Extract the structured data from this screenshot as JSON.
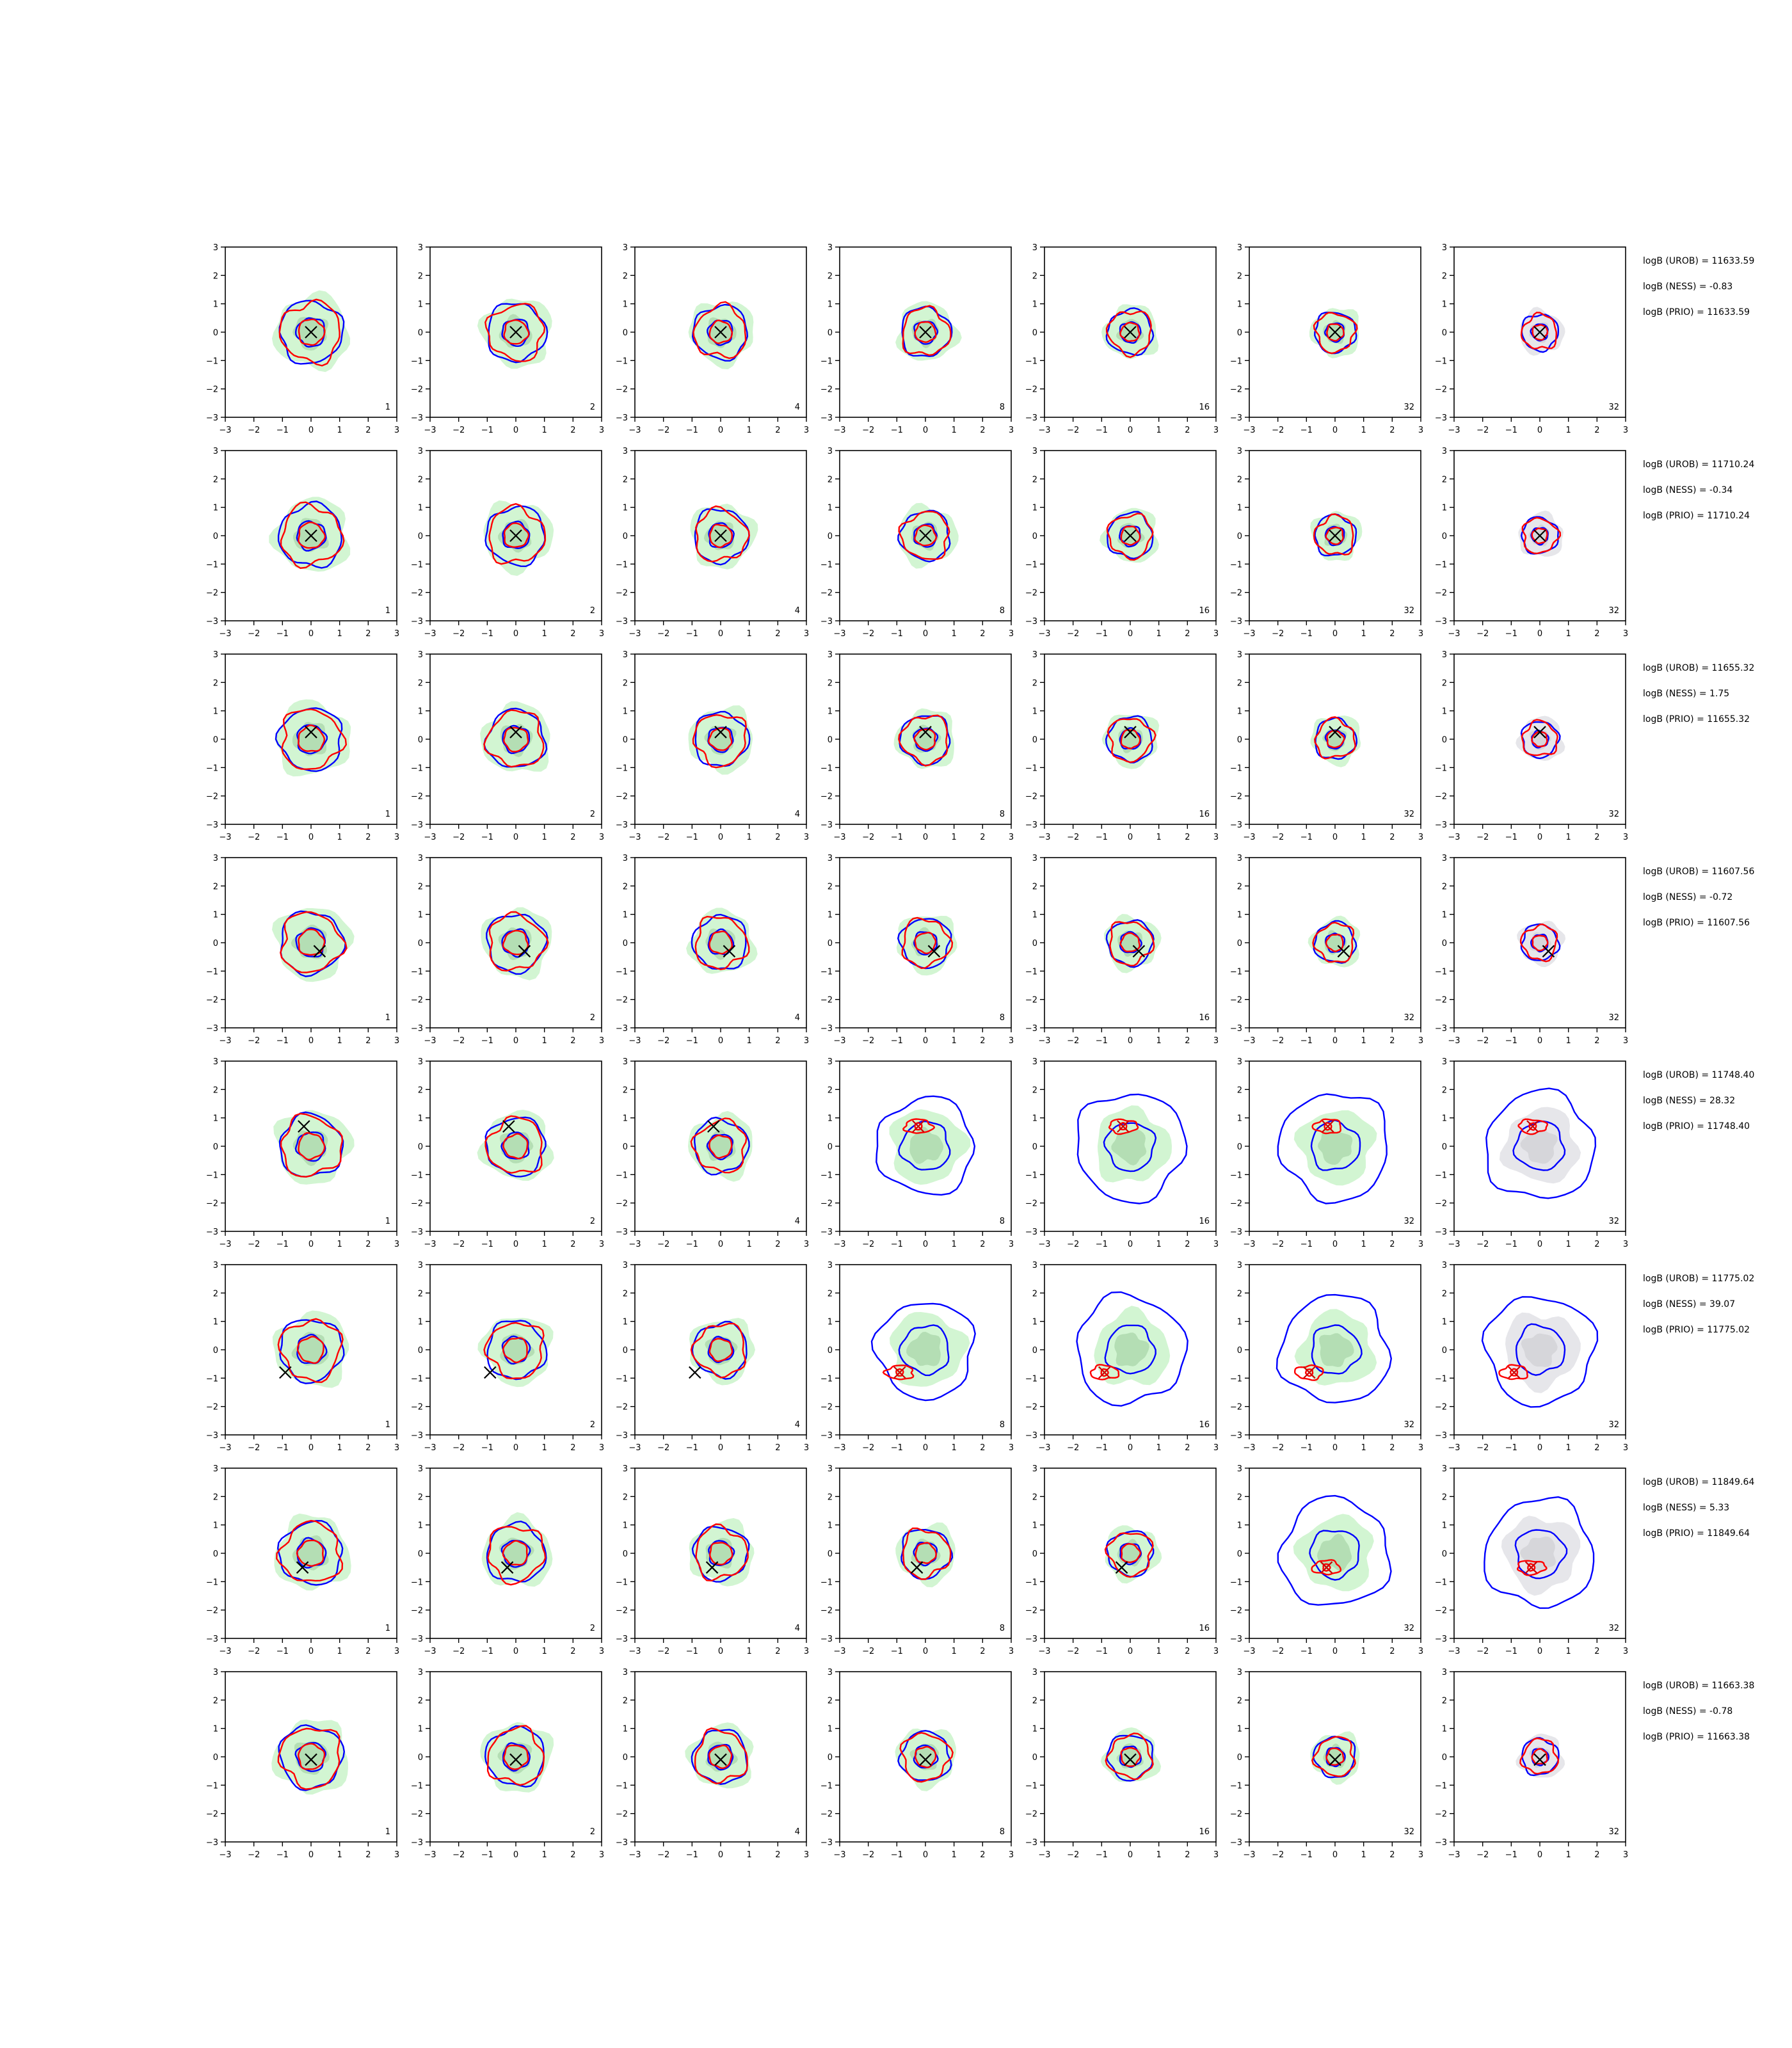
{
  "figure": {
    "x_range": [
      -3,
      3
    ],
    "y_range": [
      -3,
      3
    ],
    "x_ticks": [
      "−3",
      "−2",
      "−1",
      "0",
      "1",
      "2",
      "3"
    ],
    "y_ticks": [
      "−3",
      "−2",
      "−1",
      "0",
      "1",
      "2",
      "3"
    ],
    "colors": {
      "fill_light": "#d2f5d2",
      "fill_dark": "#b4deb4",
      "fill_gray": "#e6e6ea",
      "fill_gray_dark": "#d6d6da",
      "contour_blue": "#0000ff",
      "contour_red": "#ff0000",
      "marker": "#000000",
      "marker_red": "#cc0000"
    },
    "column_labels": [
      "1",
      "2",
      "4",
      "8",
      "16",
      "32",
      "32"
    ],
    "rows": [
      {
        "marker": [
          0.0,
          0.0
        ],
        "labels": [
          "logB (UROB) = 11633.59",
          "logB (NESS) = -0.83",
          "logB (PRIO) = 11633.59"
        ]
      },
      {
        "marker": [
          0.0,
          0.0
        ],
        "labels": [
          "logB (UROB) = 11710.24",
          "logB (NESS) = -0.34",
          "logB (PRIO) = 11710.24"
        ]
      },
      {
        "marker": [
          0.0,
          0.25
        ],
        "labels": [
          "logB (UROB) = 11655.32",
          "logB (NESS) = 1.75",
          "logB (PRIO) = 11655.32"
        ]
      },
      {
        "marker": [
          0.3,
          -0.3
        ],
        "labels": [
          "logB (UROB) = 11607.56",
          "logB (NESS) = -0.72",
          "logB (PRIO) = 11607.56"
        ]
      },
      {
        "marker": [
          -0.25,
          0.7
        ],
        "labels": [
          "logB (UROB) = 11748.40",
          "logB (NESS) = 28.32",
          "logB (PRIO) = 11748.40"
        ]
      },
      {
        "marker": [
          -0.9,
          -0.8
        ],
        "labels": [
          "logB (UROB) = 11775.02",
          "logB (NESS) = 39.07",
          "logB (PRIO) = 11775.02"
        ]
      },
      {
        "marker": [
          -0.3,
          -0.5
        ],
        "labels": [
          "logB (UROB) = 11849.64",
          "logB (NESS) = 5.33",
          "logB (PRIO) = 11849.64"
        ]
      },
      {
        "marker": [
          0.0,
          -0.1
        ],
        "labels": [
          "logB (UROB) = 11663.38",
          "logB (NESS) = -0.78",
          "logB (PRIO) = 11663.38"
        ]
      }
    ]
  }
}
